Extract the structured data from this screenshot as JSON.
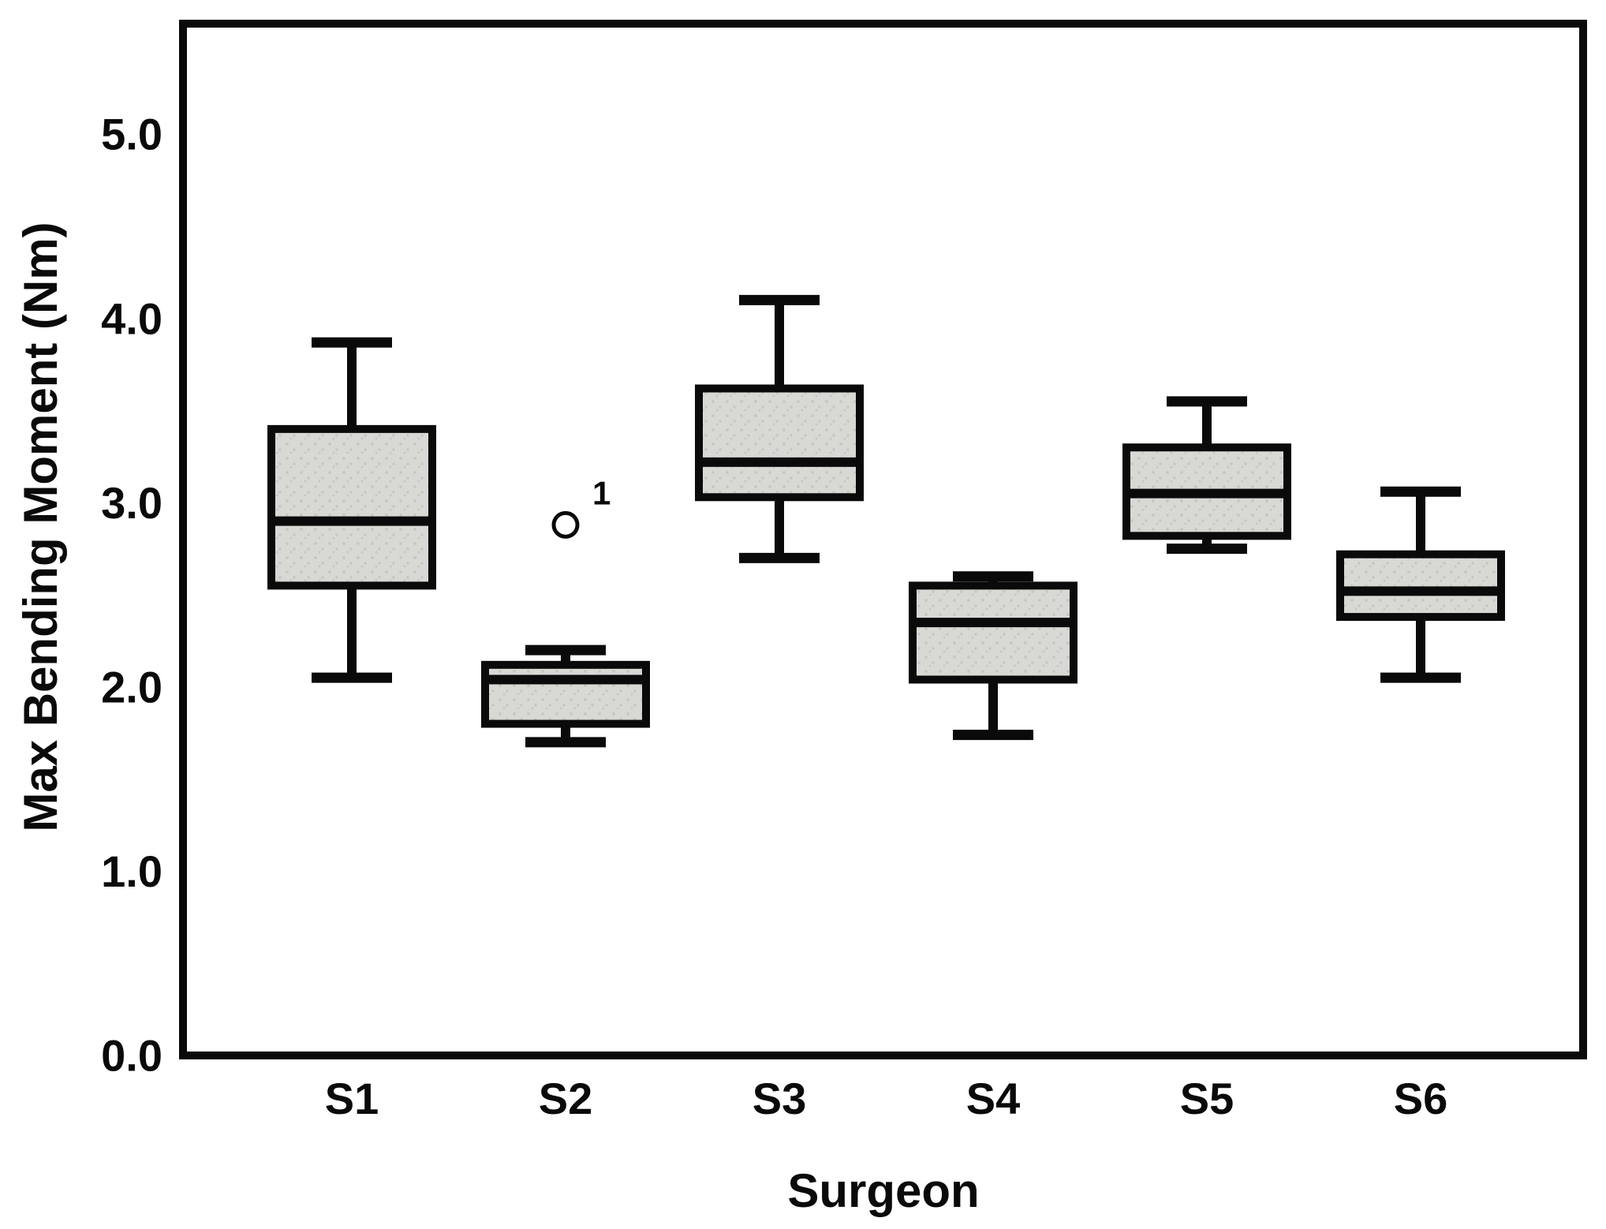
{
  "figure": {
    "background": "#ffffff",
    "frame_color": "#0a0a0a",
    "box_fill": "#d8d8d5",
    "box_speckle": "#c6c6c2"
  },
  "chart_data": {
    "type": "box",
    "title": "",
    "xlabel": "Surgeon",
    "ylabel": "Max Bending Moment (Nm)",
    "categories": [
      "S1",
      "S2",
      "S3",
      "S4",
      "S5",
      "S6"
    ],
    "y_ticks": [
      {
        "value": 0.0,
        "label": "0.0"
      },
      {
        "value": 1.0,
        "label": "1.0"
      },
      {
        "value": 2.0,
        "label": "2.0"
      },
      {
        "value": 3.0,
        "label": "3.0"
      },
      {
        "value": 4.0,
        "label": "4.0"
      },
      {
        "value": 5.0,
        "label": "5.0"
      }
    ],
    "ylim": [
      0,
      5.6
    ],
    "grid": false,
    "legend": "none",
    "series": [
      {
        "category": "S1",
        "min": 2.05,
        "q1": 2.55,
        "median": 2.9,
        "q3": 3.4,
        "max": 3.87,
        "outliers": []
      },
      {
        "category": "S2",
        "min": 1.7,
        "q1": 1.8,
        "median": 2.04,
        "q3": 2.12,
        "max": 2.2,
        "outliers": [
          {
            "value": 2.88,
            "label": "1"
          }
        ]
      },
      {
        "category": "S3",
        "min": 2.7,
        "q1": 3.03,
        "median": 3.22,
        "q3": 3.62,
        "max": 4.1,
        "outliers": []
      },
      {
        "category": "S4",
        "min": 1.74,
        "q1": 2.04,
        "median": 2.35,
        "q3": 2.55,
        "max": 2.6,
        "outliers": []
      },
      {
        "category": "S5",
        "min": 2.75,
        "q1": 2.82,
        "median": 3.05,
        "q3": 3.3,
        "max": 3.55,
        "outliers": []
      },
      {
        "category": "S6",
        "min": 2.05,
        "q1": 2.38,
        "median": 2.52,
        "q3": 2.72,
        "max": 3.06,
        "outliers": []
      }
    ]
  }
}
